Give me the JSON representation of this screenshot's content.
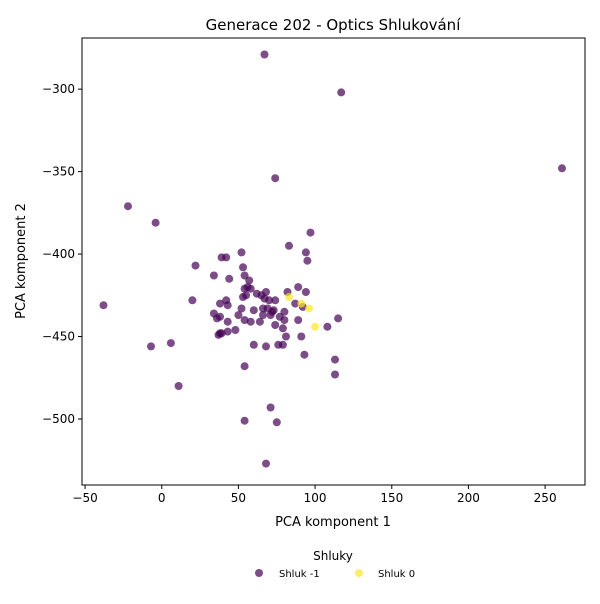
{
  "chart_data": {
    "type": "scatter",
    "title": "Generace 202 - Optics Shlukování",
    "xlabel": "PCA komponent 1",
    "ylabel": "PCA komponent 2",
    "xlim": [
      -52,
      276
    ],
    "ylim": [
      -540,
      -269
    ],
    "xticks": [
      -50,
      0,
      50,
      100,
      150,
      200,
      250
    ],
    "yticks": [
      -500,
      -450,
      -400,
      -350,
      -300
    ],
    "grid": false,
    "legend": {
      "title": "Shluky",
      "placement": "bottom-center",
      "entries": [
        "Shluk -1",
        "Shluk 0"
      ]
    },
    "colors": {
      "cluster_neg1": "#440154",
      "cluster_0": "#fde725"
    },
    "series": [
      {
        "name": "Shluk -1",
        "color": "#440154",
        "points": [
          [
            67,
            -279
          ],
          [
            117,
            -302
          ],
          [
            261,
            -348
          ],
          [
            74,
            -354
          ],
          [
            -22,
            -371
          ],
          [
            -4,
            -381
          ],
          [
            97,
            -387
          ],
          [
            83,
            -395
          ],
          [
            52,
            -399
          ],
          [
            94,
            -399
          ],
          [
            39,
            -402
          ],
          [
            42,
            -402
          ],
          [
            95,
            -404
          ],
          [
            22,
            -407
          ],
          [
            53,
            -408
          ],
          [
            54,
            -413
          ],
          [
            34,
            -413
          ],
          [
            57,
            -416
          ],
          [
            44,
            -415
          ],
          [
            56,
            -420
          ],
          [
            89,
            -420
          ],
          [
            54,
            -421
          ],
          [
            58,
            -421
          ],
          [
            82,
            -423
          ],
          [
            68,
            -423
          ],
          [
            94,
            -423
          ],
          [
            65,
            -425
          ],
          [
            62,
            -424
          ],
          [
            53,
            -426
          ],
          [
            55,
            -425
          ],
          [
            67,
            -427
          ],
          [
            74,
            -428
          ],
          [
            70,
            -428
          ],
          [
            20,
            -428
          ],
          [
            42,
            -428
          ],
          [
            38,
            -430
          ],
          [
            87,
            -430
          ],
          [
            -38,
            -431
          ],
          [
            43,
            -431
          ],
          [
            92,
            -432
          ],
          [
            66,
            -433
          ],
          [
            69,
            -433
          ],
          [
            52,
            -433
          ],
          [
            73,
            -434
          ],
          [
            60,
            -434
          ],
          [
            72,
            -435
          ],
          [
            80,
            -435
          ],
          [
            34,
            -436
          ],
          [
            71,
            -437
          ],
          [
            50,
            -437
          ],
          [
            66,
            -437
          ],
          [
            77,
            -438
          ],
          [
            115,
            -439
          ],
          [
            38,
            -438
          ],
          [
            36,
            -439
          ],
          [
            54,
            -440
          ],
          [
            80,
            -440
          ],
          [
            89,
            -440
          ],
          [
            58,
            -441
          ],
          [
            64,
            -441
          ],
          [
            43,
            -441
          ],
          [
            74,
            -443
          ],
          [
            108,
            -444
          ],
          [
            79,
            -445
          ],
          [
            48,
            -446
          ],
          [
            43,
            -447
          ],
          [
            38,
            -448
          ],
          [
            39,
            -448
          ],
          [
            37,
            -449
          ],
          [
            91,
            -450
          ],
          [
            81,
            -450
          ],
          [
            6,
            -454
          ],
          [
            60,
            -455
          ],
          [
            76,
            -455
          ],
          [
            79,
            -455
          ],
          [
            -7,
            -456
          ],
          [
            68,
            -456
          ],
          [
            93,
            -461
          ],
          [
            113,
            -464
          ],
          [
            54,
            -468
          ],
          [
            113,
            -473
          ],
          [
            11,
            -480
          ],
          [
            71,
            -493
          ],
          [
            54,
            -501
          ],
          [
            75,
            -502
          ],
          [
            68,
            -527
          ]
        ]
      },
      {
        "name": "Shluk 0",
        "color": "#fde725",
        "points": [
          [
            83,
            -426
          ],
          [
            91,
            -430
          ],
          [
            96,
            -433
          ],
          [
            100,
            -444
          ]
        ]
      }
    ]
  }
}
